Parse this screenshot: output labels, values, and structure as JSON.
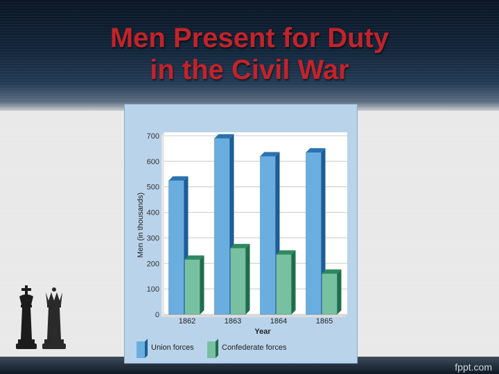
{
  "slide": {
    "title_line1": "Men Present for Duty",
    "title_line2": "in the Civil War",
    "footer": "fppt.com"
  },
  "colors": {
    "title": "#c2232b",
    "union": "#6aaedf",
    "confederate": "#77c1a0",
    "chart_bg": "#b9d3ea"
  },
  "icons": [
    "chess-king-icon",
    "chess-queen-icon"
  ],
  "chart_data": {
    "type": "bar",
    "categories": [
      "1862",
      "1863",
      "1864",
      "1865"
    ],
    "series": [
      {
        "name": "Union forces",
        "values": [
          525,
          690,
          620,
          635
        ]
      },
      {
        "name": "Confederate forces",
        "values": [
          215,
          260,
          235,
          160
        ]
      }
    ],
    "xlabel": "Year",
    "ylabel": "Men (in thousands)",
    "ylim": [
      0,
      700
    ],
    "yticks": [
      "0",
      "100",
      "200",
      "300",
      "400",
      "500",
      "600",
      "700"
    ],
    "grid": true,
    "legend": "bottom"
  }
}
